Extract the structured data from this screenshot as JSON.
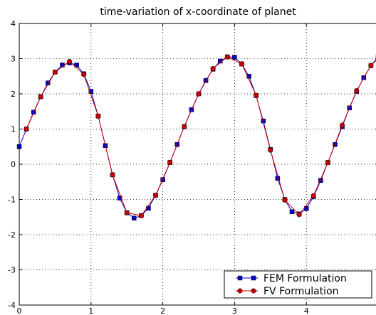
{
  "chart_data": {
    "type": "line",
    "title": "time-variation of x-coordinate of planet",
    "xlabel": "",
    "ylabel": "",
    "xlim": [
      0,
      5
    ],
    "ylim": [
      -4,
      4
    ],
    "x_ticks": [
      0,
      1,
      2,
      3,
      4
    ],
    "y_ticks": [
      -4,
      -3,
      -2,
      -1,
      0,
      1,
      2,
      3,
      4
    ],
    "x_tick_labels": [
      "0",
      "1",
      "2",
      "3",
      "4"
    ],
    "y_tick_labels": [
      "-4",
      "-3",
      "-2",
      "-1",
      "0",
      "1",
      "2",
      "3",
      "4"
    ],
    "grid": true,
    "legend_position": "lower-right",
    "series": [
      {
        "name": "FEM Formulation",
        "color": "#0000cc",
        "marker": "square",
        "x": [
          0.0,
          0.1,
          0.2,
          0.3,
          0.4,
          0.5,
          0.6,
          0.7,
          0.8,
          0.9,
          1.0,
          1.1,
          1.2,
          1.3,
          1.4,
          1.5,
          1.6,
          1.7,
          1.8,
          1.9,
          2.0,
          2.1,
          2.2,
          2.3,
          2.4,
          2.5,
          2.6,
          2.7,
          2.8,
          2.9,
          3.0,
          3.1,
          3.2,
          3.3,
          3.4,
          3.5,
          3.6,
          3.7,
          3.8,
          3.9,
          4.0,
          4.1,
          4.2,
          4.3,
          4.4,
          4.5,
          4.6,
          4.7,
          4.8,
          4.9,
          5.0
        ],
        "y": [
          0.5,
          1.0,
          1.48,
          1.92,
          2.31,
          2.62,
          2.82,
          2.88,
          2.82,
          2.57,
          2.07,
          1.37,
          0.53,
          -0.3,
          -0.96,
          -1.38,
          -1.53,
          -1.46,
          -1.25,
          -0.88,
          -0.44,
          0.05,
          0.56,
          1.07,
          1.55,
          2.0,
          2.38,
          2.7,
          2.93,
          3.05,
          3.04,
          2.85,
          2.5,
          1.95,
          1.23,
          0.42,
          -0.4,
          -1.0,
          -1.35,
          -1.41,
          -1.26,
          -0.92,
          -0.46,
          0.05,
          0.56,
          1.07,
          1.6,
          2.07,
          2.46,
          2.8,
          3.05
        ]
      },
      {
        "name": "FV Formulation",
        "color": "#cc0000",
        "marker": "circle",
        "x": [
          0.1,
          0.3,
          0.5,
          0.7,
          0.9,
          1.1,
          1.3,
          1.5,
          1.7,
          1.9,
          2.1,
          2.3,
          2.5,
          2.7,
          2.9,
          3.1,
          3.3,
          3.5,
          3.7,
          3.9,
          4.1,
          4.3,
          4.5,
          4.7,
          4.9,
          5.0
        ],
        "y": [
          1.0,
          1.92,
          2.62,
          2.92,
          2.55,
          1.37,
          -0.3,
          -1.38,
          -1.46,
          -0.88,
          0.05,
          1.07,
          2.0,
          2.72,
          3.05,
          2.85,
          1.96,
          0.4,
          -1.02,
          -1.43,
          -0.89,
          0.05,
          1.11,
          2.09,
          2.81,
          3.0
        ]
      }
    ]
  }
}
